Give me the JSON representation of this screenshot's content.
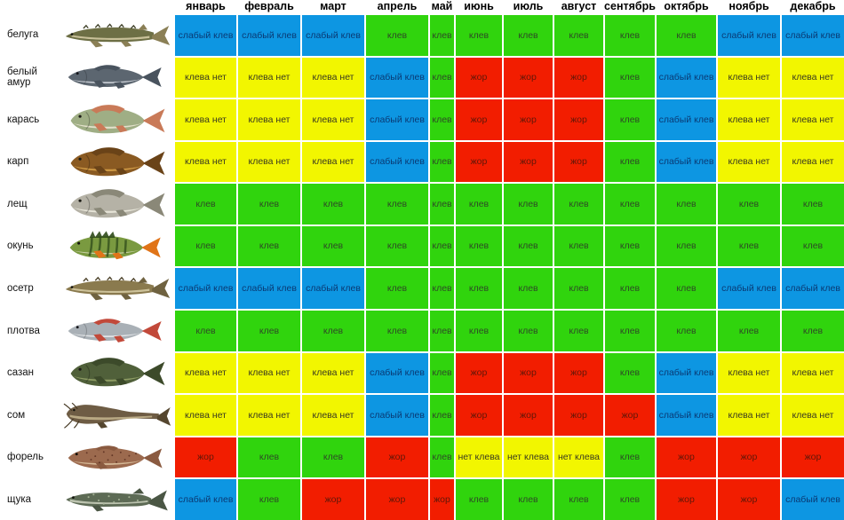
{
  "table": {
    "months": [
      "январь",
      "февраль",
      "март",
      "апрель",
      "май",
      "июнь",
      "июль",
      "август",
      "сентябрь",
      "октябрь",
      "ноябрь",
      "декабрь"
    ],
    "statuses": {
      "w": {
        "label": "слабый клев",
        "bg": "#0d96e2",
        "fg": "#0a3a74"
      },
      "b": {
        "label": "клев",
        "bg": "#30d40d",
        "fg": "#2e4a26"
      },
      "n": {
        "label": "клева нет",
        "bg": "#f2f600",
        "fg": "#3a3a20"
      },
      "f": {
        "label": "жор",
        "bg": "#f21d00",
        "fg": "#611708"
      }
    },
    "rows": [
      {
        "fish": "белуга",
        "icon": "beluga-fish-icon",
        "shape": "sturgeon",
        "colors": {
          "body": "#6d6f45",
          "belly": "#d8cfa8",
          "fin": "#8a7f55",
          "detail": "#3f4028"
        },
        "cells": [
          "w",
          "w",
          "w",
          "b",
          "b",
          "b",
          "b",
          "b",
          "b",
          "b",
          "w",
          "w"
        ]
      },
      {
        "fish": "белый амур",
        "icon": "grass-carp-fish-icon",
        "shape": "slim",
        "colors": {
          "body": "#5c6670",
          "belly": "#cfd4da",
          "fin": "#49535e",
          "detail": "#3a424c"
        },
        "cells": [
          "n",
          "n",
          "n",
          "w",
          "b",
          "f",
          "f",
          "f",
          "b",
          "w",
          "n",
          "n"
        ]
      },
      {
        "fish": "карась",
        "icon": "crucian-carp-fish-icon",
        "shape": "deep",
        "colors": {
          "body": "#9fae85",
          "belly": "#e9e6d2",
          "fin": "#c97a58",
          "detail": "#6a7a55"
        },
        "cells": [
          "n",
          "n",
          "n",
          "w",
          "b",
          "f",
          "f",
          "f",
          "b",
          "w",
          "n",
          "n"
        ]
      },
      {
        "fish": "карп",
        "icon": "carp-fish-icon",
        "shape": "deep",
        "colors": {
          "body": "#8a5a22",
          "belly": "#d8a34a",
          "fin": "#6a4318",
          "detail": "#523510"
        },
        "cells": [
          "n",
          "n",
          "n",
          "w",
          "b",
          "f",
          "f",
          "f",
          "b",
          "w",
          "n",
          "n"
        ]
      },
      {
        "fish": "лещ",
        "icon": "bream-fish-icon",
        "shape": "deep",
        "colors": {
          "body": "#b5b2a6",
          "belly": "#eceade",
          "fin": "#8a8878",
          "detail": "#7a7868"
        },
        "cells": [
          "b",
          "b",
          "b",
          "b",
          "b",
          "b",
          "b",
          "b",
          "b",
          "b",
          "b",
          "b"
        ]
      },
      {
        "fish": "окунь",
        "icon": "perch-fish-icon",
        "shape": "perch",
        "colors": {
          "body": "#7a9a40",
          "belly": "#d8dcb8",
          "fin": "#e07418",
          "detail": "#2f4a1a"
        },
        "cells": [
          "b",
          "b",
          "b",
          "b",
          "b",
          "b",
          "b",
          "b",
          "b",
          "b",
          "b",
          "b"
        ]
      },
      {
        "fish": "осетр",
        "icon": "sturgeon-fish-icon",
        "shape": "sturgeon",
        "colors": {
          "body": "#8a7a4e",
          "belly": "#d8cfa8",
          "fin": "#6f6240",
          "detail": "#4a3f26"
        },
        "cells": [
          "w",
          "w",
          "w",
          "b",
          "b",
          "b",
          "b",
          "b",
          "b",
          "b",
          "w",
          "w"
        ]
      },
      {
        "fish": "плотва",
        "icon": "roach-fish-icon",
        "shape": "slim",
        "colors": {
          "body": "#a9b0b6",
          "belly": "#e8eaec",
          "fin": "#c2493a",
          "detail": "#8a9096"
        },
        "cells": [
          "b",
          "b",
          "b",
          "b",
          "b",
          "b",
          "b",
          "b",
          "b",
          "b",
          "b",
          "b"
        ]
      },
      {
        "fish": "сазан",
        "icon": "wild-carp-fish-icon",
        "shape": "deep",
        "colors": {
          "body": "#50603a",
          "belly": "#93a268",
          "fin": "#3c4a2a",
          "detail": "#2e3a20"
        },
        "cells": [
          "n",
          "n",
          "n",
          "w",
          "b",
          "f",
          "f",
          "f",
          "b",
          "w",
          "n",
          "n"
        ]
      },
      {
        "fish": "сом",
        "icon": "catfish-fish-icon",
        "shape": "catfish",
        "colors": {
          "body": "#6e5c44",
          "belly": "#cbbb94",
          "fin": "#55462f",
          "detail": "#443722"
        },
        "cells": [
          "n",
          "n",
          "n",
          "w",
          "b",
          "f",
          "f",
          "f",
          "f",
          "w",
          "n",
          "n"
        ]
      },
      {
        "fish": "форель",
        "icon": "trout-fish-icon",
        "shape": "trout",
        "colors": {
          "body": "#9c6a4e",
          "belly": "#dcc2a0",
          "fin": "#8a5a40",
          "detail": "#5a2f20"
        },
        "cells": [
          "f",
          "b",
          "b",
          "f",
          "b",
          "n",
          "n",
          "n",
          "b",
          "f",
          "f",
          "f"
        ],
        "cell_text_overrides": {
          "5": "нет клева",
          "6": "нет клева",
          "7": "нет клева"
        }
      },
      {
        "fish": "щука",
        "icon": "pike-fish-icon",
        "shape": "pike",
        "colors": {
          "body": "#5d6b55",
          "belly": "#ccd2c0",
          "fin": "#4a5644",
          "detail": "#aab89a"
        },
        "cells": [
          "w",
          "b",
          "f",
          "f",
          "f",
          "b",
          "b",
          "b",
          "b",
          "f",
          "f",
          "w"
        ]
      }
    ]
  }
}
